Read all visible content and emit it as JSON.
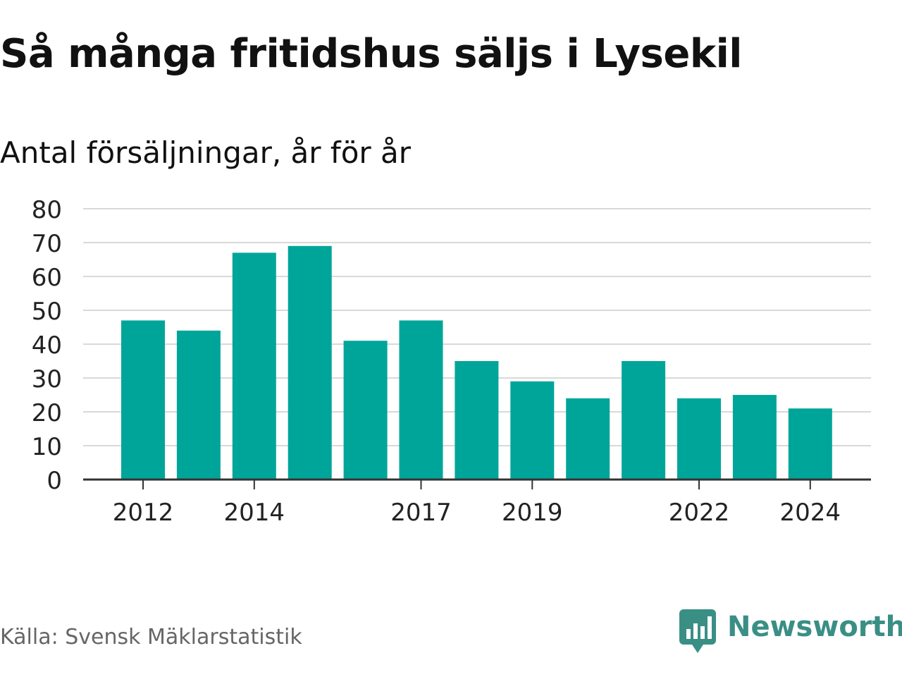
{
  "header": {
    "title": "Så många fritidshus säljs i Lysekil",
    "subtitle": "Antal försäljningar, år för år"
  },
  "footer": {
    "source": "Källa: Svensk Mäklarstatistik",
    "brand": "Newsworthy",
    "brand_icon": "bar-chart-speech-bubble-icon"
  },
  "colors": {
    "bar": "#00a59a",
    "grid": "#d9d9d9",
    "axis": "#333333",
    "brand": "#3a8f85"
  },
  "chart_data": {
    "type": "bar",
    "title": "Så många fritidshus säljs i Lysekil",
    "subtitle": "Antal försäljningar, år för år",
    "xlabel": "",
    "ylabel": "",
    "categories": [
      "2012",
      "2013",
      "2014",
      "2015",
      "2016",
      "2017",
      "2018",
      "2019",
      "2020",
      "2021",
      "2022",
      "2023",
      "2024"
    ],
    "values": [
      47,
      44,
      67,
      69,
      41,
      47,
      35,
      29,
      24,
      35,
      24,
      25,
      21
    ],
    "x_tick_labels": [
      "2012",
      "2014",
      "2017",
      "2019",
      "2022",
      "2024"
    ],
    "ylim": [
      0,
      80
    ],
    "y_ticks": [
      0,
      10,
      20,
      30,
      40,
      50,
      60,
      70,
      80
    ],
    "grid": true,
    "legend": "none"
  }
}
